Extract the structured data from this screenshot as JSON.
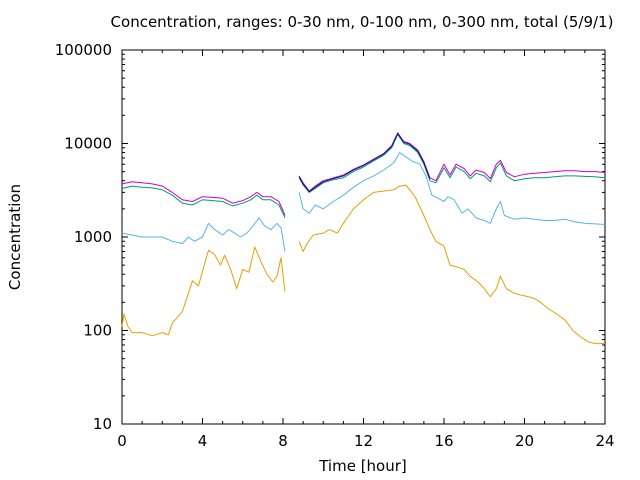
{
  "chart_data": {
    "type": "line",
    "title": "Concentration, ranges: 0-30 nm, 0-100 nm, 0-300 nm, total (5/9/1)",
    "xlabel": "Time [hour]",
    "ylabel": "Concentration",
    "xlim": [
      0,
      24
    ],
    "ylim": [
      10,
      100000
    ],
    "y_scale": "log",
    "grid": false,
    "x_ticks": [
      0,
      4,
      8,
      12,
      16,
      20,
      24
    ],
    "x_tick_labels": [
      "0",
      "4",
      "8",
      "12",
      "16",
      "20",
      "24"
    ],
    "y_ticks": [
      10,
      100,
      1000,
      10000,
      100000
    ],
    "y_tick_labels": [
      "10",
      "100",
      "1000",
      "10000",
      "100000"
    ],
    "series": [
      {
        "color": "#e69f00",
        "points": [
          [
            0,
            110
          ],
          [
            0.1,
            150
          ],
          [
            0.3,
            110
          ],
          [
            0.5,
            95
          ],
          [
            1.0,
            95
          ],
          [
            1.5,
            88
          ],
          [
            2.0,
            95
          ],
          [
            2.3,
            90
          ],
          [
            2.5,
            120
          ],
          [
            3.0,
            160
          ],
          [
            3.3,
            250
          ],
          [
            3.5,
            340
          ],
          [
            3.8,
            300
          ],
          [
            4.0,
            430
          ],
          [
            4.3,
            720
          ],
          [
            4.6,
            650
          ],
          [
            4.9,
            500
          ],
          [
            5.1,
            640
          ],
          [
            5.4,
            450
          ],
          [
            5.7,
            280
          ],
          [
            6.0,
            450
          ],
          [
            6.3,
            420
          ],
          [
            6.6,
            780
          ],
          [
            6.9,
            550
          ],
          [
            7.2,
            400
          ],
          [
            7.5,
            330
          ],
          [
            7.7,
            380
          ],
          [
            7.9,
            600
          ],
          [
            8.1,
            260
          ],
          [
            null,
            null
          ],
          [
            8.8,
            900
          ],
          [
            9.0,
            700
          ],
          [
            9.2,
            850
          ],
          [
            9.5,
            1050
          ],
          [
            10.0,
            1100
          ],
          [
            10.3,
            1200
          ],
          [
            10.7,
            1100
          ],
          [
            11.0,
            1400
          ],
          [
            11.5,
            2000
          ],
          [
            12.0,
            2500
          ],
          [
            12.5,
            3000
          ],
          [
            13.0,
            3100
          ],
          [
            13.5,
            3200
          ],
          [
            13.8,
            3500
          ],
          [
            14.1,
            3600
          ],
          [
            14.3,
            3200
          ],
          [
            14.6,
            2600
          ],
          [
            15.0,
            1700
          ],
          [
            15.3,
            1200
          ],
          [
            15.6,
            900
          ],
          [
            16.0,
            800
          ],
          [
            16.3,
            500
          ],
          [
            16.6,
            480
          ],
          [
            17.0,
            450
          ],
          [
            17.3,
            380
          ],
          [
            17.7,
            330
          ],
          [
            18.0,
            280
          ],
          [
            18.3,
            230
          ],
          [
            18.6,
            280
          ],
          [
            18.8,
            380
          ],
          [
            19.1,
            280
          ],
          [
            19.5,
            250
          ],
          [
            19.8,
            240
          ],
          [
            20.2,
            230
          ],
          [
            20.5,
            220
          ],
          [
            20.8,
            200
          ],
          [
            21.2,
            170
          ],
          [
            21.6,
            150
          ],
          [
            22.0,
            130
          ],
          [
            22.4,
            100
          ],
          [
            22.8,
            85
          ],
          [
            23.2,
            75
          ],
          [
            23.6,
            72
          ],
          [
            24.0,
            73
          ]
        ]
      },
      {
        "color": "#56b4e9",
        "points": [
          [
            0,
            1100
          ],
          [
            0.5,
            1050
          ],
          [
            1.0,
            1000
          ],
          [
            1.5,
            1000
          ],
          [
            2.0,
            1000
          ],
          [
            2.5,
            900
          ],
          [
            3.0,
            850
          ],
          [
            3.3,
            1000
          ],
          [
            3.6,
            900
          ],
          [
            4.0,
            1000
          ],
          [
            4.3,
            1400
          ],
          [
            4.6,
            1200
          ],
          [
            5.0,
            1050
          ],
          [
            5.3,
            1200
          ],
          [
            5.6,
            1100
          ],
          [
            5.9,
            1000
          ],
          [
            6.2,
            1100
          ],
          [
            6.5,
            1300
          ],
          [
            6.8,
            1600
          ],
          [
            7.1,
            1300
          ],
          [
            7.4,
            1200
          ],
          [
            7.7,
            1400
          ],
          [
            7.9,
            1250
          ],
          [
            8.1,
            700
          ],
          [
            null,
            null
          ],
          [
            8.8,
            3000
          ],
          [
            9.0,
            2000
          ],
          [
            9.3,
            1800
          ],
          [
            9.6,
            2200
          ],
          [
            10.0,
            2000
          ],
          [
            10.5,
            2400
          ],
          [
            11.0,
            2800
          ],
          [
            11.5,
            3400
          ],
          [
            12.0,
            4000
          ],
          [
            12.5,
            4500
          ],
          [
            13.0,
            5200
          ],
          [
            13.5,
            6200
          ],
          [
            13.8,
            8000
          ],
          [
            14.1,
            7200
          ],
          [
            14.4,
            6500
          ],
          [
            14.8,
            6000
          ],
          [
            15.1,
            4500
          ],
          [
            15.4,
            2800
          ],
          [
            15.7,
            2600
          ],
          [
            16.0,
            2400
          ],
          [
            16.2,
            2700
          ],
          [
            16.5,
            2500
          ],
          [
            16.9,
            1800
          ],
          [
            17.2,
            2000
          ],
          [
            17.6,
            1600
          ],
          [
            18.0,
            1500
          ],
          [
            18.3,
            1400
          ],
          [
            18.6,
            2000
          ],
          [
            18.8,
            2400
          ],
          [
            19.0,
            1700
          ],
          [
            19.5,
            1550
          ],
          [
            20.0,
            1600
          ],
          [
            20.5,
            1550
          ],
          [
            21.0,
            1500
          ],
          [
            21.5,
            1500
          ],
          [
            22.0,
            1550
          ],
          [
            22.5,
            1450
          ],
          [
            23.0,
            1400
          ],
          [
            23.5,
            1380
          ],
          [
            24.0,
            1360
          ]
        ]
      },
      {
        "color": "#009e73",
        "points": [
          [
            0,
            3300
          ],
          [
            0.5,
            3500
          ],
          [
            1.0,
            3400
          ],
          [
            1.5,
            3350
          ],
          [
            2.0,
            3200
          ],
          [
            2.5,
            2800
          ],
          [
            3.0,
            2300
          ],
          [
            3.5,
            2200
          ],
          [
            4.0,
            2500
          ],
          [
            4.5,
            2450
          ],
          [
            5.0,
            2400
          ],
          [
            5.5,
            2150
          ],
          [
            6.0,
            2300
          ],
          [
            6.4,
            2500
          ],
          [
            6.7,
            2800
          ],
          [
            7.0,
            2500
          ],
          [
            7.4,
            2500
          ],
          [
            7.8,
            2200
          ],
          [
            8.1,
            1600
          ],
          [
            null,
            null
          ],
          [
            8.8,
            4300
          ],
          [
            9.0,
            3600
          ],
          [
            9.3,
            3000
          ],
          [
            9.6,
            3300
          ],
          [
            10.0,
            3800
          ],
          [
            10.5,
            4100
          ],
          [
            11.0,
            4300
          ],
          [
            11.5,
            5000
          ],
          [
            12.0,
            5600
          ],
          [
            12.5,
            6500
          ],
          [
            13.0,
            7500
          ],
          [
            13.4,
            9000
          ],
          [
            13.7,
            12500
          ],
          [
            14.0,
            10000
          ],
          [
            14.3,
            9500
          ],
          [
            14.7,
            8000
          ],
          [
            15.0,
            6000
          ],
          [
            15.3,
            4000
          ],
          [
            15.6,
            3800
          ],
          [
            16.0,
            5500
          ],
          [
            16.3,
            4300
          ],
          [
            16.6,
            5600
          ],
          [
            17.0,
            5000
          ],
          [
            17.3,
            4200
          ],
          [
            17.6,
            4800
          ],
          [
            18.0,
            4500
          ],
          [
            18.3,
            3900
          ],
          [
            18.6,
            5500
          ],
          [
            18.8,
            6200
          ],
          [
            19.1,
            4500
          ],
          [
            19.5,
            4000
          ],
          [
            20.0,
            4200
          ],
          [
            20.5,
            4300
          ],
          [
            21.0,
            4300
          ],
          [
            21.5,
            4400
          ],
          [
            22.0,
            4500
          ],
          [
            22.5,
            4500
          ],
          [
            23.0,
            4450
          ],
          [
            23.5,
            4400
          ],
          [
            24.0,
            4300
          ]
        ]
      },
      {
        "color": "#cc00cc",
        "points": [
          [
            0,
            3700
          ],
          [
            0.5,
            3900
          ],
          [
            1.0,
            3800
          ],
          [
            1.5,
            3700
          ],
          [
            2.0,
            3500
          ],
          [
            2.5,
            3000
          ],
          [
            3.0,
            2500
          ],
          [
            3.5,
            2400
          ],
          [
            4.0,
            2700
          ],
          [
            4.5,
            2650
          ],
          [
            5.0,
            2600
          ],
          [
            5.5,
            2300
          ],
          [
            6.0,
            2450
          ],
          [
            6.4,
            2700
          ],
          [
            6.7,
            3000
          ],
          [
            7.0,
            2700
          ],
          [
            7.4,
            2700
          ],
          [
            7.8,
            2400
          ],
          [
            8.1,
            1700
          ],
          [
            null,
            null
          ],
          [
            8.8,
            4500
          ],
          [
            9.0,
            3800
          ],
          [
            9.3,
            3100
          ],
          [
            9.6,
            3500
          ],
          [
            10.0,
            4000
          ],
          [
            10.5,
            4300
          ],
          [
            11.0,
            4600
          ],
          [
            11.5,
            5300
          ],
          [
            12.0,
            5900
          ],
          [
            12.5,
            6800
          ],
          [
            13.0,
            7800
          ],
          [
            13.4,
            9500
          ],
          [
            13.7,
            13000
          ],
          [
            14.0,
            10500
          ],
          [
            14.3,
            10000
          ],
          [
            14.7,
            8500
          ],
          [
            15.0,
            6400
          ],
          [
            15.3,
            4300
          ],
          [
            15.6,
            4000
          ],
          [
            16.0,
            6000
          ],
          [
            16.3,
            4600
          ],
          [
            16.6,
            6000
          ],
          [
            17.0,
            5400
          ],
          [
            17.3,
            4500
          ],
          [
            17.6,
            5200
          ],
          [
            18.0,
            4900
          ],
          [
            18.3,
            4200
          ],
          [
            18.6,
            6000
          ],
          [
            18.8,
            6600
          ],
          [
            19.1,
            4900
          ],
          [
            19.5,
            4400
          ],
          [
            20.0,
            4700
          ],
          [
            20.5,
            4800
          ],
          [
            21.0,
            4900
          ],
          [
            21.5,
            5000
          ],
          [
            22.0,
            5100
          ],
          [
            22.5,
            5100
          ],
          [
            23.0,
            5000
          ],
          [
            23.5,
            5000
          ],
          [
            24.0,
            4900
          ]
        ]
      },
      {
        "color": "#0b1a7a",
        "points": [
          [
            8.8,
            4400
          ],
          [
            9.0,
            3700
          ],
          [
            9.3,
            3050
          ],
          [
            9.6,
            3400
          ],
          [
            10.0,
            3900
          ],
          [
            10.5,
            4200
          ],
          [
            11.0,
            4500
          ],
          [
            11.5,
            5200
          ],
          [
            12.0,
            5800
          ],
          [
            12.5,
            6700
          ],
          [
            13.0,
            7700
          ],
          [
            13.4,
            9300
          ],
          [
            13.7,
            12800
          ],
          [
            14.0,
            10300
          ],
          [
            14.3,
            9800
          ],
          [
            14.7,
            8300
          ],
          [
            15.0,
            6200
          ],
          [
            15.3,
            4200
          ]
        ]
      }
    ]
  }
}
